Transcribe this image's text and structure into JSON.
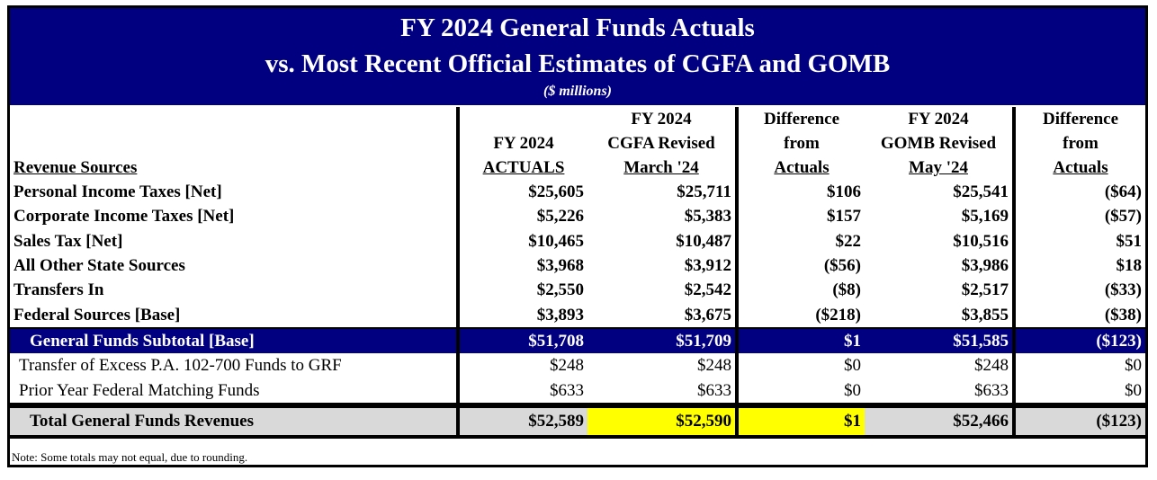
{
  "title": {
    "line1": "FY 2024 General Funds Actuals",
    "line2": "vs. Most Recent Official Estimates of CGFA and GOMB",
    "units": "($ millions)"
  },
  "headers": {
    "revenue": "Revenue Sources",
    "actuals": [
      "",
      "FY 2024",
      "ACTUALS"
    ],
    "cgfa": [
      "FY 2024",
      "CGFA Revised",
      "March '24"
    ],
    "cgfa_diff": [
      "Difference",
      "from",
      "Actuals"
    ],
    "gomb": [
      "FY 2024",
      "GOMB Revised",
      "May '24"
    ],
    "gomb_diff": [
      "Difference",
      "from",
      "Actuals"
    ]
  },
  "rows": [
    {
      "label": "Personal Income Taxes [Net]",
      "v": [
        "$25,605",
        "$25,711",
        "$106",
        "$25,541",
        "($64)"
      ]
    },
    {
      "label": "Corporate Income Taxes [Net]",
      "v": [
        "$5,226",
        "$5,383",
        "$157",
        "$5,169",
        "($57)"
      ]
    },
    {
      "label": "Sales Tax [Net]",
      "v": [
        "$10,465",
        "$10,487",
        "$22",
        "$10,516",
        "$51"
      ]
    },
    {
      "label": "All Other State Sources",
      "v": [
        "$3,968",
        "$3,912",
        "($56)",
        "$3,986",
        "$18"
      ]
    },
    {
      "label": "Transfers In",
      "v": [
        "$2,550",
        "$2,542",
        "($8)",
        "$2,517",
        "($33)"
      ]
    },
    {
      "label": "Federal Sources [Base]",
      "v": [
        "$3,893",
        "$3,675",
        "($218)",
        "$3,855",
        "($38)"
      ]
    }
  ],
  "subtotal": {
    "label": "General Funds Subtotal [Base]",
    "v": [
      "$51,708",
      "$51,709",
      "$1",
      "$51,585",
      "($123)"
    ]
  },
  "extra": [
    {
      "label": "Transfer of Excess P.A. 102-700 Funds to GRF",
      "v": [
        "$248",
        "$248",
        "$0",
        "$248",
        "$0"
      ]
    },
    {
      "label": "Prior Year Federal Matching Funds",
      "v": [
        "$633",
        "$633",
        "$0",
        "$633",
        "$0"
      ]
    }
  ],
  "total": {
    "label": "Total General Funds Revenues",
    "v": [
      "$52,589",
      "$52,590",
      "$1",
      "$52,466",
      "($123)"
    ]
  },
  "note": "Note:  Some totals may not equal, due to rounding.",
  "colors": {
    "header_band": "#000080",
    "highlight": "#ffff00",
    "total_bg": "#d9d9d9"
  }
}
